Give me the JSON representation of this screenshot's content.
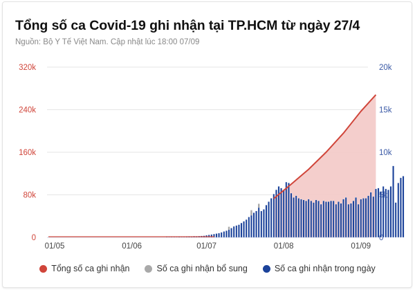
{
  "header": {
    "title": "Tổng số ca Covid-19 ghi nhận tại TP.HCM từ ngày 27/4",
    "subtitle": "Nguồn: Bộ Y Tế Việt Nam. Cập nhật lúc 18:00 07/09"
  },
  "colors": {
    "cumulative": "#d0453a",
    "cumulative_fill": "#f3c9c6",
    "supplementary": "#a9a9a9",
    "daily": "#1b429a",
    "left_axis": "#d0453a",
    "right_axis": "#3b5aa6",
    "grid": "#e6e6e6"
  },
  "legend": [
    {
      "label": "Tổng số ca ghi nhận",
      "color": "#d0453a"
    },
    {
      "label": "Số ca ghi nhận bổ sung",
      "color": "#a9a9a9"
    },
    {
      "label": "Số ca ghi nhận trong ngày",
      "color": "#1b429a"
    }
  ],
  "chart_data": {
    "type": "bar+area",
    "title": "Tổng số ca Covid-19 ghi nhận tại TP.HCM từ ngày 27/4",
    "subtitle": "Nguồn: Bộ Y Tế Việt Nam. Cập nhật lúc 18:00 07/09",
    "x_ticks": [
      "01/05",
      "01/06",
      "01/07",
      "01/08",
      "01/09"
    ],
    "left_axis": {
      "label": "Tổng số ca ghi nhận",
      "ticks": [
        "0",
        "80k",
        "160k",
        "240k",
        "320k"
      ],
      "range": [
        0,
        320000
      ]
    },
    "right_axis": {
      "label": "Số ca ghi nhận trong ngày",
      "ticks": [
        "0",
        "5k",
        "10k",
        "15k",
        "20k"
      ],
      "range": [
        0,
        20000
      ]
    },
    "grid": true,
    "legend_position": "bottom",
    "series": [
      {
        "name": "Tổng số ca ghi nhận",
        "type": "area",
        "axis": "left",
        "points": [
          {
            "date": "28/07",
            "value": 73000
          },
          {
            "date": "04/08",
            "value": 100000
          },
          {
            "date": "11/08",
            "value": 128000
          },
          {
            "date": "18/08",
            "value": 160000
          },
          {
            "date": "25/08",
            "value": 196000
          },
          {
            "date": "01/09",
            "value": 237000
          },
          {
            "date": "07/09",
            "value": 268000
          }
        ]
      },
      {
        "name": "Số ca ghi nhận bổ sung",
        "type": "bar",
        "axis": "right",
        "points": [
          {
            "date": "10/07",
            "value": 350
          },
          {
            "date": "19/07",
            "value": 600
          },
          {
            "date": "22/07",
            "value": 450
          }
        ]
      },
      {
        "name": "Số ca ghi nhận trong ngày",
        "type": "bar",
        "axis": "right",
        "start_date": "15/06",
        "values": [
          60,
          50,
          70,
          60,
          50,
          80,
          60,
          70,
          90,
          120,
          100,
          150,
          130,
          160,
          180,
          200,
          250,
          300,
          350,
          400,
          450,
          500,
          600,
          700,
          800,
          900,
          1100,
          1300,
          1400,
          1500,
          1700,
          1900,
          2100,
          2400,
          2600,
          2900,
          3100,
          3500,
          3100,
          3300,
          3800,
          4200,
          4600,
          5100,
          5600,
          6000,
          5800,
          5500,
          6500,
          6400,
          5200,
          4700,
          4900,
          4600,
          4500,
          4400,
          4300,
          4500,
          4300,
          4100,
          4400,
          4300,
          3900,
          4300,
          4200,
          4200,
          4300,
          4300,
          3900,
          4200,
          4000,
          4500,
          4700,
          3900,
          4000,
          4300,
          4700,
          3900,
          4500,
          4600,
          4600,
          4900,
          5300,
          4800,
          5700,
          5800,
          5400,
          6000,
          5700,
          5600,
          6000,
          8400,
          4100,
          6400,
          7000,
          7200
        ]
      }
    ]
  }
}
